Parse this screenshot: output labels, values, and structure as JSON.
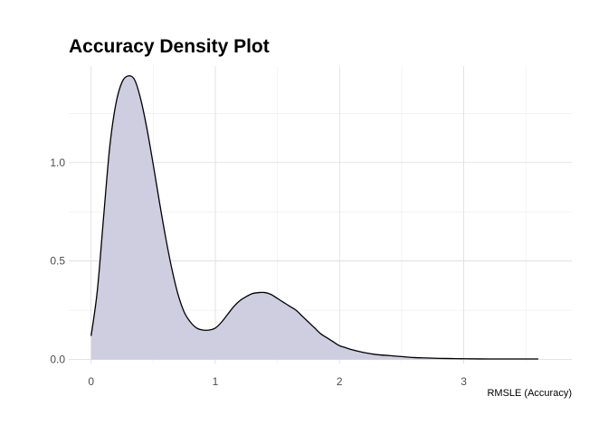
{
  "chart_data": {
    "type": "area",
    "title": "Accuracy Density Plot",
    "xlabel": "RMSLE (Accuracy)",
    "ylabel": "",
    "xlim": [
      -0.18,
      3.87
    ],
    "ylim": [
      -0.02,
      1.49
    ],
    "x_ticks": [
      0,
      1,
      2,
      3
    ],
    "x_tick_labels": [
      "0",
      "1",
      "2",
      "3"
    ],
    "y_ticks": [
      0.0,
      0.5,
      1.0
    ],
    "y_tick_labels": [
      "0.0",
      "0.5",
      "1.0"
    ],
    "x_minor_ticks": [
      0.5,
      1.5,
      2.5,
      3.5
    ],
    "y_minor_ticks": [
      0.25,
      0.75,
      1.25
    ],
    "grid": true,
    "fill_color": "#cfcde0",
    "line_color": "#000000",
    "series": [
      {
        "x": [
          0.0,
          0.05,
          0.1,
          0.15,
          0.2,
          0.25,
          0.3,
          0.35,
          0.4,
          0.45,
          0.5,
          0.55,
          0.6,
          0.65,
          0.7,
          0.75,
          0.8,
          0.85,
          0.9,
          0.95,
          1.0,
          1.05,
          1.1,
          1.15,
          1.2,
          1.25,
          1.3,
          1.35,
          1.4,
          1.45,
          1.5,
          1.55,
          1.6,
          1.65,
          1.7,
          1.75,
          1.8,
          1.85,
          1.9,
          1.95,
          2.0,
          2.05,
          2.1,
          2.2,
          2.3,
          2.4,
          2.5,
          2.6,
          2.7,
          2.8,
          2.9,
          3.0,
          3.2,
          3.4,
          3.6
        ],
        "y": [
          0.12,
          0.35,
          0.72,
          1.08,
          1.3,
          1.41,
          1.44,
          1.42,
          1.32,
          1.17,
          0.99,
          0.8,
          0.62,
          0.46,
          0.33,
          0.24,
          0.19,
          0.16,
          0.15,
          0.15,
          0.16,
          0.19,
          0.23,
          0.27,
          0.3,
          0.32,
          0.335,
          0.34,
          0.34,
          0.33,
          0.31,
          0.29,
          0.27,
          0.25,
          0.22,
          0.19,
          0.16,
          0.13,
          0.11,
          0.09,
          0.07,
          0.06,
          0.05,
          0.035,
          0.025,
          0.02,
          0.015,
          0.01,
          0.008,
          0.006,
          0.005,
          0.004,
          0.003,
          0.003,
          0.003
        ]
      }
    ]
  }
}
